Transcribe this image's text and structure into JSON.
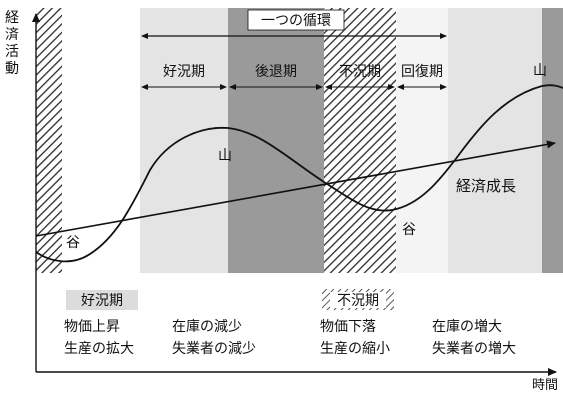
{
  "axes": {
    "y_label": "経済活動",
    "x_label": "時間"
  },
  "cycle": {
    "label": "一つの循環"
  },
  "phases": [
    {
      "label": "好況期"
    },
    {
      "label": "後退期"
    },
    {
      "label": "不況期"
    },
    {
      "label": "回復期"
    }
  ],
  "curve_labels": {
    "peak_1": "山",
    "peak_2": "山",
    "trough_1": "谷",
    "trough_2": "谷",
    "trend": "経済成長"
  },
  "legend": {
    "boom": {
      "title": "好況期",
      "items": [
        "物価上昇",
        "在庫の減少",
        "生産の拡大",
        "失業者の減少"
      ]
    },
    "slump": {
      "title": "不況期",
      "items": [
        "物価下落",
        "在庫の増大",
        "生産の縮小",
        "失業者の増大"
      ]
    }
  },
  "colors": {
    "light_band": "#e4e4e4",
    "dark_band": "#9a9a9a",
    "hatch": "#2a2a2a",
    "line": "#111111"
  }
}
